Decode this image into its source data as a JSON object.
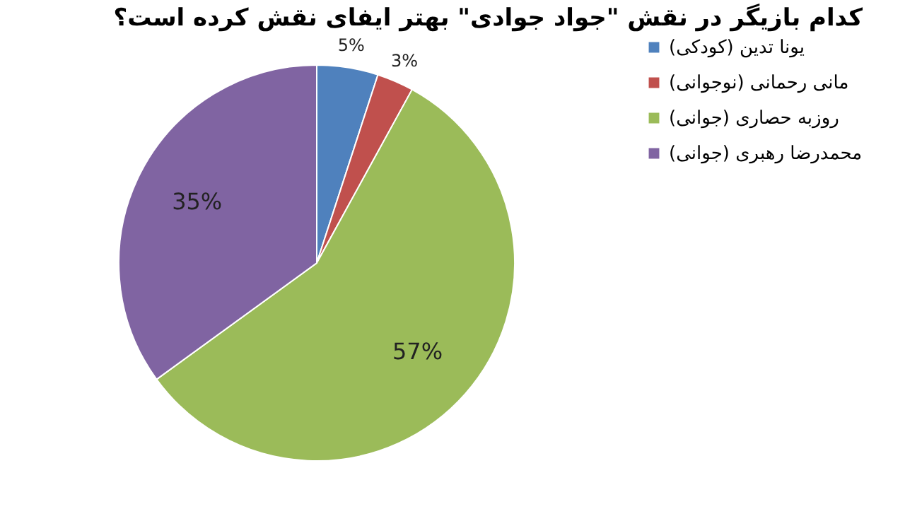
{
  "chart_data": {
    "type": "pie",
    "title": "کدام بازیگر در نقش \"جواد جوادی\" بهتر ایفای نقش کرده است؟",
    "categories": [
      "یونا تدین (کودکی)",
      "مانی رحمانی (نوجوانی)",
      "روزبه حصاری (جوانی)",
      "محمدرضا رهبری (جوانی)"
    ],
    "values": [
      5,
      3,
      57,
      35
    ],
    "value_labels": [
      "5%",
      "3%",
      "57%",
      "35%"
    ],
    "colors": [
      "#4f81bd",
      "#c0504d",
      "#9bbb59",
      "#8064a2"
    ],
    "legend": "right"
  }
}
